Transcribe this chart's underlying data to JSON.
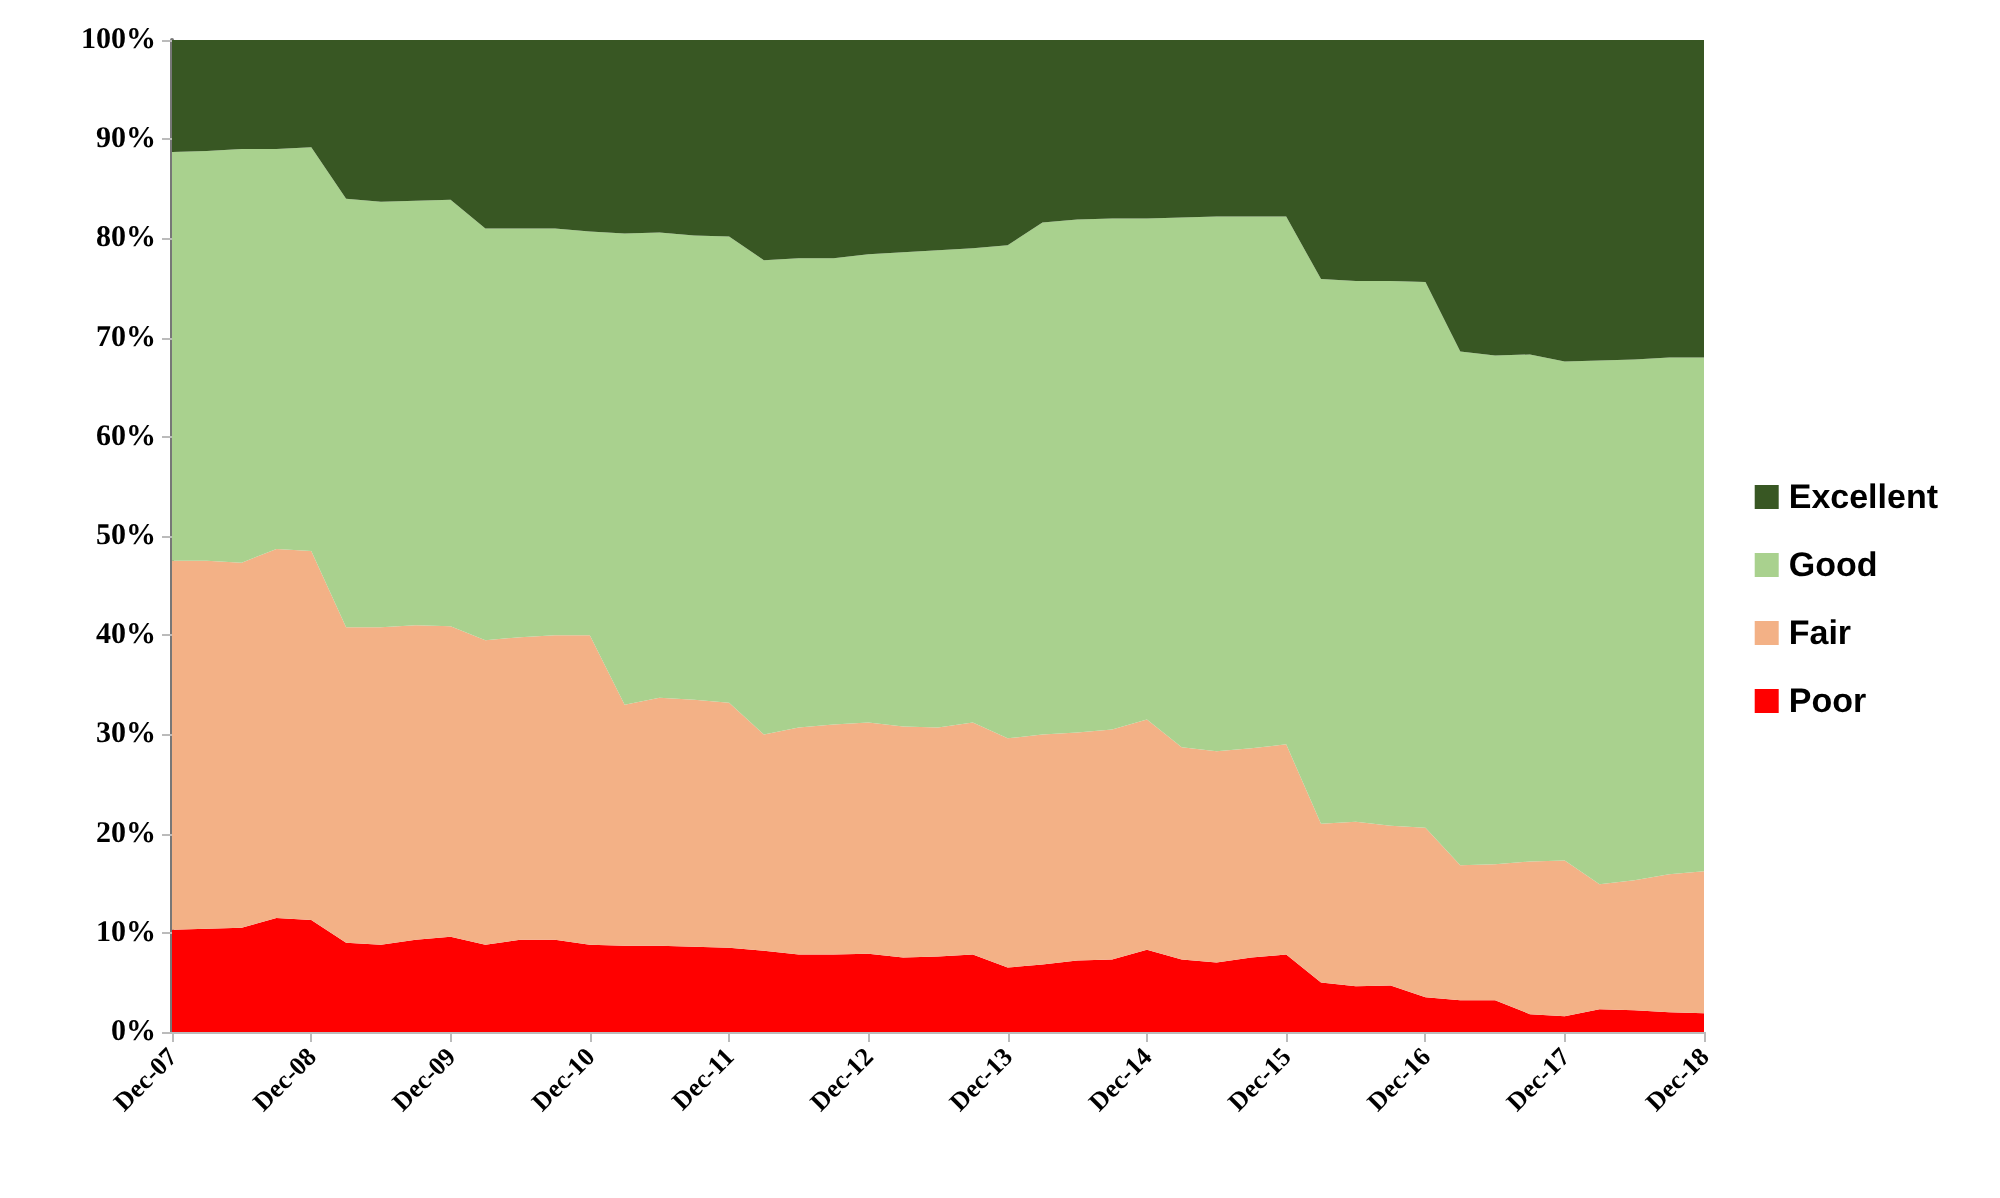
{
  "chart_data": {
    "type": "area",
    "stacked": true,
    "legend": "right",
    "grid": false,
    "categories": [
      "Dec-07",
      null,
      null,
      null,
      "Dec-08",
      null,
      null,
      null,
      "Dec-09",
      null,
      null,
      null,
      "Dec-10",
      null,
      null,
      null,
      "Dec-11",
      null,
      null,
      null,
      "Dec-12",
      null,
      null,
      null,
      "Dec-13",
      null,
      null,
      null,
      "Dec-14",
      null,
      null,
      null,
      "Dec-15",
      null,
      null,
      null,
      "Dec-16",
      null,
      null,
      null,
      "Dec-17",
      null,
      null,
      null,
      "Dec-18"
    ],
    "ylim": [
      0,
      100
    ],
    "yticks": [
      {
        "value": 0,
        "label": "0%"
      },
      {
        "value": 10,
        "label": "10%"
      },
      {
        "value": 20,
        "label": "20%"
      },
      {
        "value": 30,
        "label": "30%"
      },
      {
        "value": 40,
        "label": "40%"
      },
      {
        "value": 50,
        "label": "50%"
      },
      {
        "value": 60,
        "label": "60%"
      },
      {
        "value": 70,
        "label": "70%"
      },
      {
        "value": 80,
        "label": "80%"
      },
      {
        "value": 90,
        "label": "90%"
      },
      {
        "value": 100,
        "label": "100%"
      }
    ],
    "series": [
      {
        "name": "Poor",
        "color": "#ff0000",
        "values": [
          10.3,
          10.4,
          10.5,
          11.5,
          11.3,
          9.0,
          8.8,
          9.3,
          9.6,
          8.8,
          9.3,
          9.3,
          8.8,
          8.7,
          8.7,
          8.6,
          8.5,
          8.2,
          7.8,
          7.8,
          7.9,
          7.5,
          7.6,
          7.8,
          6.5,
          6.8,
          7.2,
          7.3,
          8.3,
          7.3,
          7.0,
          7.5,
          7.8,
          5.0,
          4.6,
          4.7,
          3.5,
          3.2,
          3.2,
          1.8,
          1.6,
          2.3,
          2.2,
          2.0,
          1.9
        ]
      },
      {
        "name": "Fair",
        "color": "#f3b186",
        "values": [
          37.2,
          37.1,
          36.8,
          37.2,
          37.2,
          31.8,
          32.0,
          31.7,
          31.3,
          30.7,
          30.5,
          30.7,
          31.2,
          24.3,
          25.0,
          24.9,
          24.7,
          21.8,
          22.9,
          23.2,
          23.3,
          23.3,
          23.1,
          23.4,
          23.1,
          23.2,
          23.0,
          23.2,
          23.2,
          21.4,
          21.3,
          21.1,
          21.2,
          16.0,
          16.6,
          16.1,
          17.1,
          13.6,
          13.7,
          15.4,
          15.7,
          12.6,
          13.1,
          13.9,
          14.3
        ]
      },
      {
        "name": "Good",
        "color": "#a9d18e",
        "values": [
          41.2,
          41.3,
          41.7,
          40.3,
          40.7,
          43.2,
          42.9,
          42.8,
          43.0,
          41.5,
          41.2,
          41.0,
          40.7,
          47.5,
          46.9,
          46.8,
          47.0,
          47.8,
          47.3,
          47.0,
          47.2,
          47.8,
          48.1,
          47.8,
          49.7,
          51.6,
          51.7,
          51.5,
          50.5,
          53.4,
          53.9,
          53.6,
          53.2,
          54.9,
          54.5,
          54.9,
          55.0,
          51.8,
          51.3,
          51.1,
          50.3,
          52.8,
          52.5,
          52.1,
          51.8
        ]
      },
      {
        "name": "Excellent",
        "color": "#385723",
        "values": [
          11.3,
          11.2,
          11.0,
          11.0,
          10.8,
          16.0,
          16.3,
          16.2,
          16.1,
          19.0,
          19.0,
          19.0,
          19.3,
          19.5,
          19.4,
          19.7,
          19.8,
          22.2,
          22.0,
          22.0,
          21.6,
          21.4,
          21.2,
          21.0,
          20.7,
          18.4,
          18.1,
          18.0,
          18.0,
          17.9,
          17.8,
          17.8,
          17.8,
          24.1,
          24.3,
          24.3,
          24.4,
          31.4,
          31.8,
          31.7,
          32.4,
          32.3,
          32.2,
          32.0,
          32.0
        ]
      }
    ]
  }
}
